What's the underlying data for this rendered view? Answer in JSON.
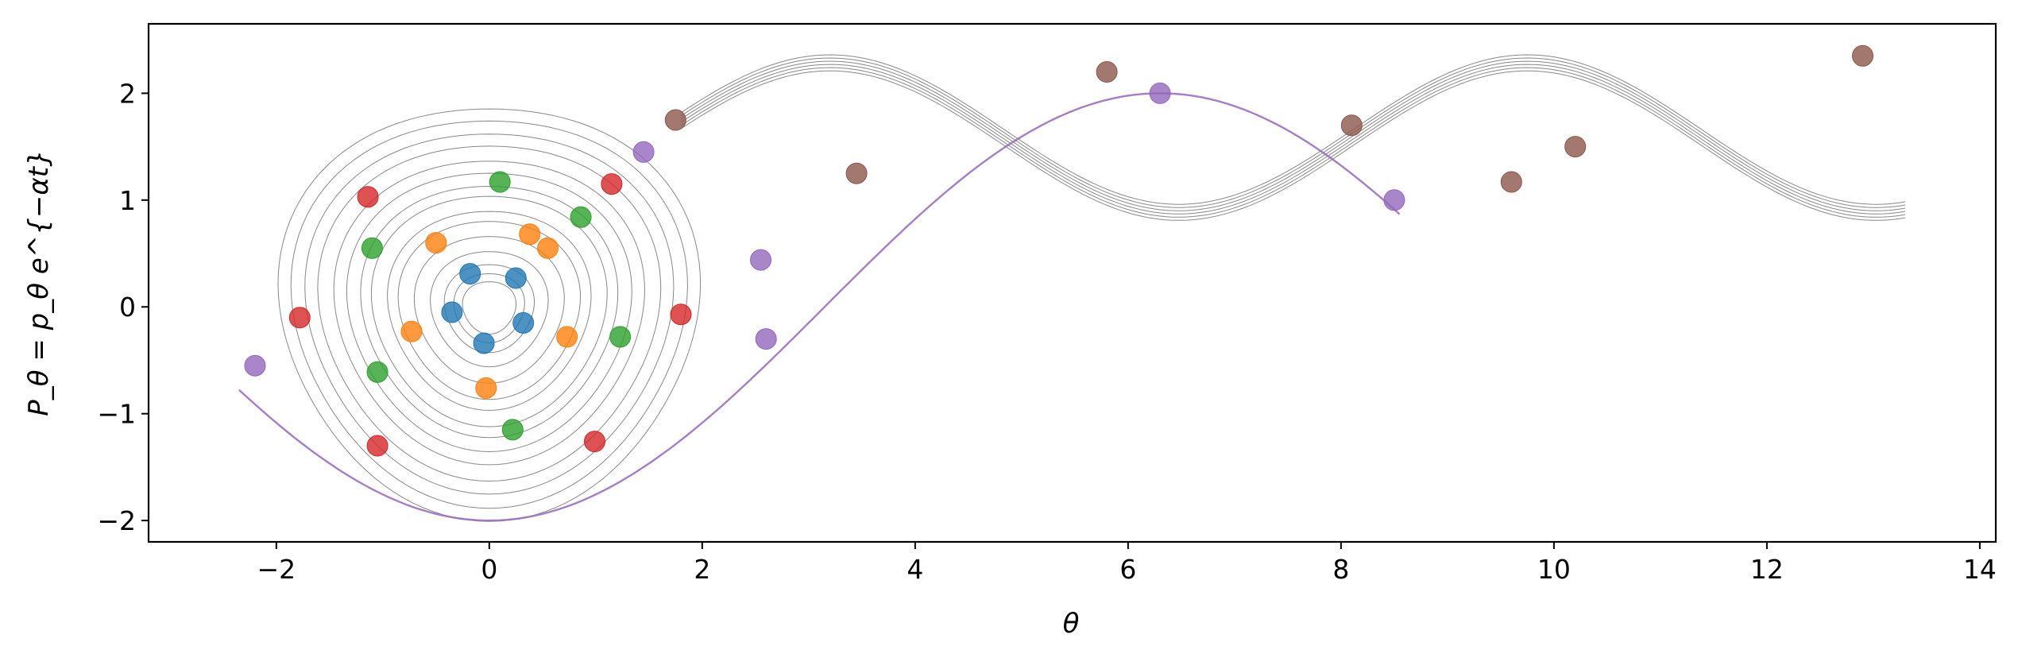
{
  "chart_data": {
    "type": "line",
    "title": "",
    "xlabel": "θ",
    "ylabel": "P_θ = p_θ e^{−αt}",
    "xlim": [
      -3.2,
      14.15
    ],
    "ylim": [
      -2.2,
      2.65
    ],
    "xticks": [
      -2,
      0,
      2,
      4,
      6,
      8,
      10,
      12,
      14
    ],
    "yticks": [
      -2,
      -1,
      0,
      1,
      2
    ],
    "xtick_labels": [
      "−2",
      "0",
      "2",
      "4",
      "6",
      "8",
      "10",
      "12",
      "14"
    ],
    "ytick_labels": [
      "−2",
      "−1",
      "0",
      "1",
      "2"
    ],
    "grid": false,
    "legend": "none",
    "trajectory_color": "#555555",
    "bundles": [
      {
        "kind": "spiral",
        "center": [
          0,
          0
        ],
        "radii": [
          0.25,
          0.33,
          0.42,
          0.55,
          0.7,
          0.85,
          0.95,
          1.1,
          1.2,
          1.33,
          1.45,
          1.6,
          1.72,
          1.85,
          1.97
        ]
      },
      {
        "kind": "sine",
        "x_start": 1.8,
        "x_end": 13.3,
        "y_start": 1.75,
        "amplitude": 0.55,
        "period": 6.55,
        "baseline_growth": 0.0,
        "offsets": [
          -0.09,
          -0.06,
          -0.03,
          0.0,
          0.03,
          0.06
        ]
      }
    ],
    "series": [
      {
        "color": "#1f77b4",
        "points": [
          [
            -0.18,
            0.31
          ],
          [
            0.25,
            0.27
          ],
          [
            0.32,
            -0.15
          ],
          [
            -0.05,
            -0.34
          ],
          [
            -0.35,
            -0.05
          ]
        ]
      },
      {
        "color": "#ff7f0e",
        "points": [
          [
            -0.5,
            0.6
          ],
          [
            0.38,
            0.68
          ],
          [
            0.55,
            0.55
          ],
          [
            0.73,
            -0.28
          ],
          [
            -0.73,
            -0.23
          ],
          [
            -0.03,
            -0.76
          ]
        ]
      },
      {
        "color": "#2ca02c",
        "points": [
          [
            0.1,
            1.17
          ],
          [
            0.86,
            0.84
          ],
          [
            -1.1,
            0.55
          ],
          [
            1.23,
            -0.28
          ],
          [
            -1.05,
            -0.61
          ],
          [
            0.22,
            -1.15
          ]
        ]
      },
      {
        "color": "#d62728",
        "points": [
          [
            -1.14,
            1.03
          ],
          [
            1.15,
            1.15
          ],
          [
            -1.78,
            -0.1
          ],
          [
            1.8,
            -0.07
          ],
          [
            -1.05,
            -1.3
          ],
          [
            0.99,
            -1.26
          ]
        ]
      },
      {
        "color": "#9467bd",
        "points": [
          [
            1.45,
            1.45
          ],
          [
            2.55,
            0.44
          ],
          [
            2.6,
            -0.3
          ],
          [
            -2.2,
            -0.55
          ],
          [
            6.3,
            2.0
          ],
          [
            8.5,
            1.0
          ]
        ]
      },
      {
        "color": "#8c564b",
        "points": [
          [
            1.75,
            1.75
          ],
          [
            3.45,
            1.25
          ],
          [
            5.8,
            2.2
          ],
          [
            8.1,
            1.7
          ],
          [
            9.6,
            1.17
          ],
          [
            10.2,
            1.5
          ],
          [
            12.9,
            2.35
          ]
        ]
      }
    ]
  }
}
